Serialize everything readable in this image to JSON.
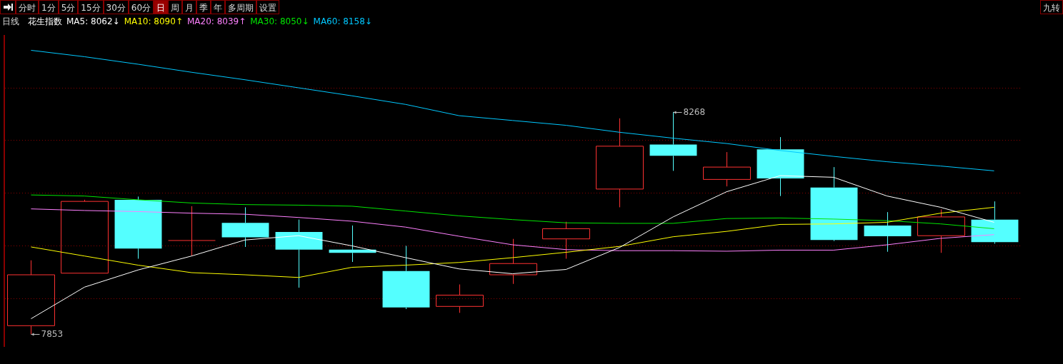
{
  "chart_data": {
    "type": "candlestick",
    "title": "花生指数",
    "subtitle": "日线",
    "annotations": [
      "分时",
      "1分",
      "5分",
      "15分",
      "30分",
      "60分",
      "日",
      "周",
      "月",
      "季",
      "年",
      "多周期",
      "设置",
      "九转",
      "8268",
      "7853"
    ],
    "categories": [
      null,
      null,
      null,
      null,
      null,
      null,
      null,
      null,
      null,
      null,
      null,
      null,
      null,
      null,
      null,
      null,
      null,
      null,
      null
    ],
    "ohlc": [
      [
        7869,
        7991,
        7853,
        7964
      ],
      [
        7967,
        8104,
        7967,
        8101
      ],
      [
        8104,
        8110,
        7994,
        8013
      ],
      [
        8028,
        8092,
        8000,
        8028
      ],
      [
        8061,
        8090,
        8016,
        8034
      ],
      [
        8044,
        8067,
        7940,
        8011
      ],
      [
        8011,
        8056,
        7988,
        8005
      ],
      [
        7971,
        8018,
        7900,
        7903
      ],
      [
        7905,
        7946,
        7893,
        7926
      ],
      [
        7964,
        8031,
        7947,
        7985
      ],
      [
        8031,
        8063,
        7994,
        8050
      ],
      [
        8124,
        8256,
        8090,
        8204
      ],
      [
        8207,
        8268,
        8158,
        8186
      ],
      [
        8142,
        8193,
        8129,
        8165
      ],
      [
        8198,
        8221,
        8111,
        8144
      ],
      [
        8127,
        8165,
        8027,
        8029
      ],
      [
        8056,
        8081,
        8007,
        8036
      ],
      [
        8037,
        8086,
        8005,
        8072
      ],
      [
        8067,
        8101,
        8022,
        8025
      ]
    ],
    "colors": [
      "#ff3232",
      "#ff3232",
      "#54ffff",
      "#ff3232",
      "#54ffff",
      "#54ffff",
      "#54ffff",
      "#54ffff",
      "#ff3232",
      "#ff3232",
      "#ff3232",
      "#ff3232",
      "#54ffff",
      "#ff3232",
      "#54ffff",
      "#54ffff",
      "#54ffff",
      "#ff3232",
      "#54ffff"
    ],
    "series": [
      {
        "type": "line",
        "name": "MA5: 8062↓",
        "color": "#ffffff",
        "values": [
          7882,
          7941,
          7973,
          7999,
          8029,
          8037,
          8018,
          7996,
          7975,
          7966,
          7974,
          8015,
          8072,
          8119,
          8149,
          8146,
          8111,
          8090,
          8062
        ]
      },
      {
        "type": "line",
        "name": "MA10: 8090↑",
        "color": "#ffff00",
        "values": [
          8016,
          7999,
          7982,
          7968,
          7964,
          7959,
          7978,
          7982,
          7987,
          7996,
          8006,
          8017,
          8035,
          8045,
          8058,
          8059,
          8062,
          8079,
          8090
        ]
      },
      {
        "type": "line",
        "name": "MA20: 8039↑",
        "color": "#ff80ff",
        "values": [
          8087,
          8084,
          8082,
          8079,
          8077,
          8071,
          8064,
          8053,
          8036,
          8020,
          8011,
          8009,
          8009,
          8008,
          8010,
          8010,
          8020,
          8032,
          8039
        ]
      },
      {
        "type": "line",
        "name": "MA30: 8050↓",
        "color": "#00e600",
        "values": [
          8113,
          8111,
          8104,
          8098,
          8095,
          8094,
          8092,
          8083,
          8074,
          8067,
          8061,
          8060,
          8060,
          8069,
          8070,
          8068,
          8065,
          8059,
          8050
        ]
      },
      {
        "type": "line",
        "name": "MA60: 8158↓",
        "color": "#00c8ff",
        "values": [
          8383,
          8371,
          8357,
          8342,
          8328,
          8313,
          8298,
          8282,
          8261,
          8252,
          8243,
          8230,
          8219,
          8209,
          8196,
          8185,
          8175,
          8167,
          8158
        ]
      }
    ],
    "ylim": [
      7830,
      8410
    ],
    "yticks": [
      {
        "value": 8312,
        "label": null
      },
      {
        "value": 8215,
        "label": null
      },
      {
        "value": 8117,
        "label": null
      },
      {
        "value": 8018,
        "label": null
      },
      {
        "value": 7920,
        "label": null
      }
    ],
    "grid": "y",
    "legend": "top left",
    "marker": "none",
    "line_style": "solid"
  }
}
